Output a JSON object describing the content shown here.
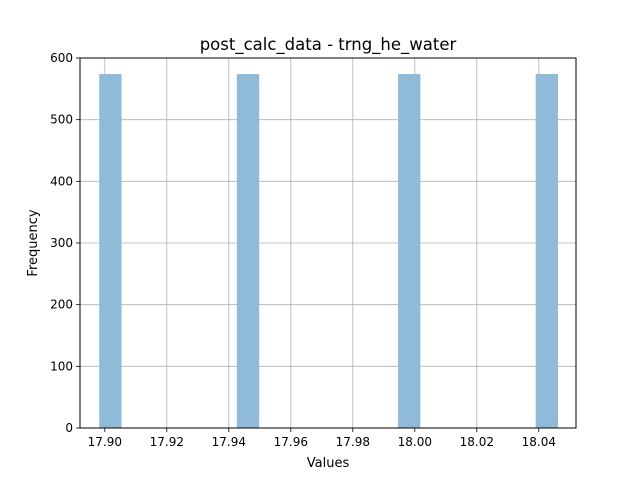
{
  "chart_data": {
    "type": "bar",
    "title": "post_calc_data - trng_he_water",
    "xlabel": "Values",
    "ylabel": "Frequency",
    "xlim": [
      17.892,
      18.052
    ],
    "ylim": [
      0,
      600
    ],
    "x_ticks": [
      17.9,
      17.92,
      17.94,
      17.96,
      17.98,
      18.0,
      18.02,
      18.04
    ],
    "x_tick_labels": [
      "17.90",
      "17.92",
      "17.94",
      "17.96",
      "17.98",
      "18.00",
      "18.02",
      "18.04"
    ],
    "y_ticks": [
      0,
      100,
      200,
      300,
      400,
      500,
      600
    ],
    "y_tick_labels": [
      "0",
      "100",
      "200",
      "300",
      "400",
      "500",
      "600"
    ],
    "grid": true,
    "bar_color": "#8fbbd9",
    "bins": [
      {
        "x0": 17.8982,
        "x1": 17.9054,
        "value": 574
      },
      {
        "x0": 17.9426,
        "x1": 17.9498,
        "value": 574
      },
      {
        "x0": 17.9946,
        "x1": 18.0018,
        "value": 574
      },
      {
        "x0": 18.039,
        "x1": 18.0462,
        "value": 574
      }
    ]
  }
}
